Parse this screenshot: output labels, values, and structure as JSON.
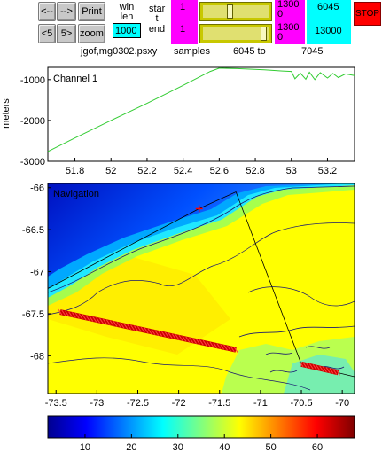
{
  "controls": {
    "btn_prev": "<--",
    "btn_next": "-->",
    "btn_print": "Print",
    "btn_back5": "<5",
    "btn_fwd5": "5>",
    "btn_zoom": "zoom",
    "winlen_label": "win len",
    "winlen_value": "1000",
    "start_label": "star t",
    "end_label": "end",
    "start_index": "1",
    "end_index": "1",
    "start_max": "1300 0",
    "end_max": "1300 0",
    "start_sample": "6045",
    "end_sample": "13000",
    "btn_stop": "STOP",
    "start_slider_level": 0.4,
    "end_slider_level": 0.97
  },
  "info_line": {
    "filename": "jgof,mg0302.psxy",
    "samples_label": "samples",
    "from": "6045 to",
    "to": "7045"
  },
  "chart_data": [
    {
      "type": "line",
      "title": "Channel 1",
      "ylabel": "meters",
      "xlim": [
        51.65,
        53.35
      ],
      "ylim": [
        -3000,
        -700
      ],
      "xticks": [
        "51.8",
        "52",
        "52.2",
        "52.4",
        "52.6",
        "52.8",
        "53",
        "53.2"
      ],
      "yticks": [
        "-1000",
        "-2000",
        "-3000"
      ],
      "series": [
        {
          "color": "#33cc33",
          "x": [
            51.65,
            51.8,
            52.0,
            52.2,
            52.4,
            52.55,
            52.6,
            52.7,
            52.85,
            52.95,
            53.0,
            53.02,
            53.05,
            53.08,
            53.1,
            53.13,
            53.16,
            53.2,
            53.23,
            53.26,
            53.3,
            53.35
          ],
          "y": [
            -2760,
            -2430,
            -2000,
            -1580,
            -1140,
            -800,
            -720,
            -730,
            -760,
            -790,
            -800,
            -980,
            -840,
            -990,
            -820,
            -1000,
            -830,
            -960,
            -850,
            -950,
            -860,
            -900
          ]
        }
      ]
    },
    {
      "type": "heatmap",
      "title": "Navigation",
      "xlim": [
        -73.6,
        -69.85
      ],
      "ylim": [
        -68.45,
        -65.95
      ],
      "xticks": [
        "-73.5",
        "-73",
        "-72.5",
        "-72",
        "-71.5",
        "-71",
        "-70.5",
        "-70"
      ],
      "yticks": [
        "-66",
        "-66.5",
        "-67",
        "-67.5",
        "-68"
      ],
      "ship_position": {
        "x": -71.75,
        "y": -66.25
      },
      "track_segments": [
        {
          "x": [
            -73.45,
            -71.3
          ],
          "y": [
            -67.48,
            -67.93
          ]
        },
        {
          "x": [
            -70.5,
            -70.05
          ],
          "y": [
            -68.1,
            -68.2
          ]
        }
      ],
      "thin_track": {
        "x": [
          -73.6,
          -71.75,
          -71.3,
          -70.5,
          -69.85
        ],
        "y": [
          -67.2,
          -66.25,
          -66.05,
          -68.1,
          -68.25
        ]
      }
    },
    {
      "type": "colorbar",
      "ticks": [
        "10",
        "20",
        "30",
        "40",
        "50",
        "60"
      ],
      "range": [
        2,
        68
      ],
      "colormap": [
        "#00008f",
        "#0000ff",
        "#0080ff",
        "#00ffff",
        "#80ff80",
        "#ffff00",
        "#ff8000",
        "#ff0000",
        "#800000"
      ]
    }
  ]
}
